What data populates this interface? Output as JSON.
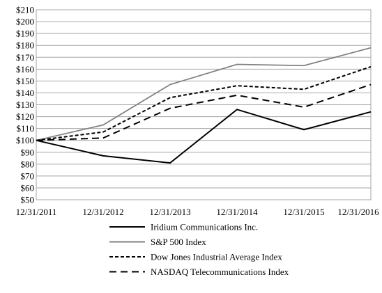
{
  "chart_data": {
    "type": "line",
    "x": [
      "12/31/2011",
      "12/31/2012",
      "12/31/2013",
      "12/31/2014",
      "12/31/2015",
      "12/31/2016"
    ],
    "ylim": [
      50,
      210
    ],
    "ytick_step": 10,
    "ytick_prefix": "$",
    "grid": true,
    "legend_position": "bottom",
    "series": [
      {
        "name": "Iridium Communications Inc.",
        "key": "iridium",
        "values": [
          100,
          87,
          81,
          126,
          109,
          124
        ],
        "color": "#000000",
        "style": "solid"
      },
      {
        "name": "S&P 500 Index",
        "key": "sp500",
        "values": [
          100,
          113,
          147,
          164,
          163,
          178
        ],
        "color": "#808080",
        "style": "solid"
      },
      {
        "name": "Dow Jones Industrial Average Index",
        "key": "dowjones",
        "values": [
          100,
          107,
          136,
          146,
          143,
          162
        ],
        "color": "#000000",
        "style": "short-dash"
      },
      {
        "name": "NASDAQ Telecommunications Index",
        "key": "nasdaq",
        "values": [
          100,
          102,
          127,
          138,
          128,
          147
        ],
        "color": "#000000",
        "style": "long-dash"
      }
    ]
  }
}
